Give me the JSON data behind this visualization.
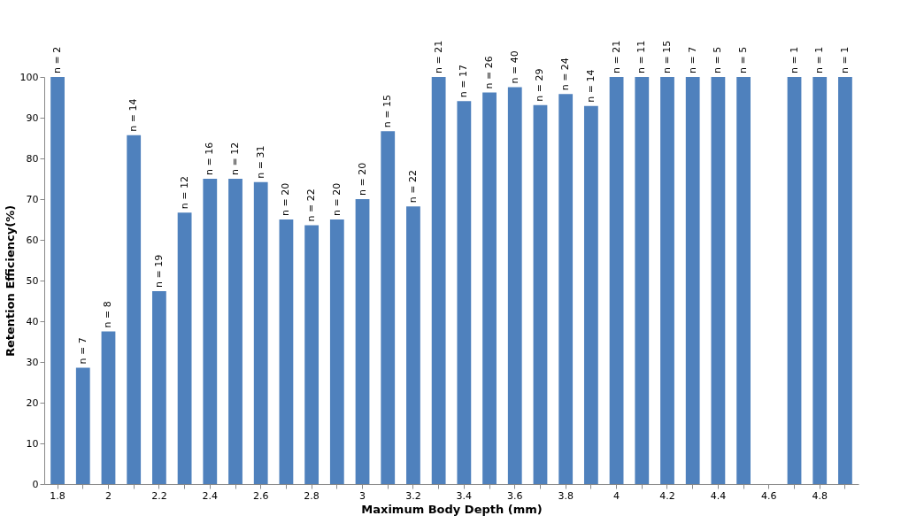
{
  "chart_data": {
    "type": "bar",
    "xlabel": "Maximum Body Depth (mm)",
    "ylabel": "Retention Efficiency(%)",
    "categories": [
      "1.8",
      null,
      "2",
      null,
      "2.2",
      null,
      "2.4",
      null,
      "2.6",
      null,
      "2.8",
      null,
      "3",
      null,
      "3.2",
      null,
      "3.4",
      null,
      "3.6",
      null,
      "3.8",
      null,
      "4",
      null,
      "4.2",
      null,
      "4.4",
      null,
      "4.6",
      null,
      "4.8",
      null
    ],
    "values": [
      100,
      28.6,
      37.5,
      85.7,
      47.4,
      66.7,
      75,
      75,
      74.2,
      65,
      63.6,
      65,
      70,
      86.7,
      68.2,
      100,
      94.1,
      96.2,
      97.5,
      93.1,
      95.8,
      92.9,
      100,
      100,
      100,
      100,
      100,
      100,
      null,
      100,
      100,
      100
    ],
    "annotations": [
      {
        "text": "n = 2",
        "x": "1.8",
        "y": 100
      },
      {
        "text": "n = 7",
        "y": 28.6
      },
      {
        "text": "n = 8",
        "x": "2",
        "y": 37.5
      },
      {
        "text": "n = 14",
        "y": 85.7
      },
      {
        "text": "n = 19",
        "x": "2.2",
        "y": 47.4
      },
      {
        "text": "n = 12",
        "y": 66.7
      },
      {
        "text": "n = 16",
        "x": "2.4",
        "y": 75
      },
      {
        "text": "n = 12",
        "y": 75
      },
      {
        "text": "n = 31",
        "x": "2.6",
        "y": 74.2
      },
      {
        "text": "n = 20",
        "y": 65
      },
      {
        "text": "n = 22",
        "x": "2.8",
        "y": 63.6
      },
      {
        "text": "n = 20",
        "y": 65
      },
      {
        "text": "n = 20",
        "x": "3",
        "y": 70
      },
      {
        "text": "n = 15",
        "y": 86.7
      },
      {
        "text": "n = 22",
        "x": "3.2",
        "y": 68.2
      },
      {
        "text": "n = 21",
        "y": 100
      },
      {
        "text": "n = 17",
        "x": "3.4",
        "y": 94.1
      },
      {
        "text": "n = 26",
        "y": 96.2
      },
      {
        "text": "n = 40",
        "x": "3.6",
        "y": 97.5
      },
      {
        "text": "n = 29",
        "y": 93.1
      },
      {
        "text": "n = 24",
        "x": "3.8",
        "y": 95.8
      },
      {
        "text": "n = 14",
        "y": 92.9
      },
      {
        "text": "n = 21",
        "x": "4",
        "y": 100
      },
      {
        "text": "n = 11",
        "y": 100
      },
      {
        "text": "n = 15",
        "x": "4.2",
        "y": 100
      },
      {
        "text": "n = 7",
        "y": 100
      },
      {
        "text": "n = 5",
        "x": "4.4",
        "y": 100
      },
      {
        "text": "n = 5",
        "y": 100
      },
      {
        "text": "n = 1",
        "y": 100
      },
      {
        "text": "n = 1",
        "x": "4.8",
        "y": 100
      },
      {
        "text": "n = 1",
        "y": 100
      }
    ],
    "color": "#4f81bd",
    "ylim": [
      0,
      100
    ],
    "yticks": [
      0,
      10,
      20,
      30,
      40,
      50,
      60,
      70,
      80,
      90,
      100
    ],
    "grid": false
  }
}
